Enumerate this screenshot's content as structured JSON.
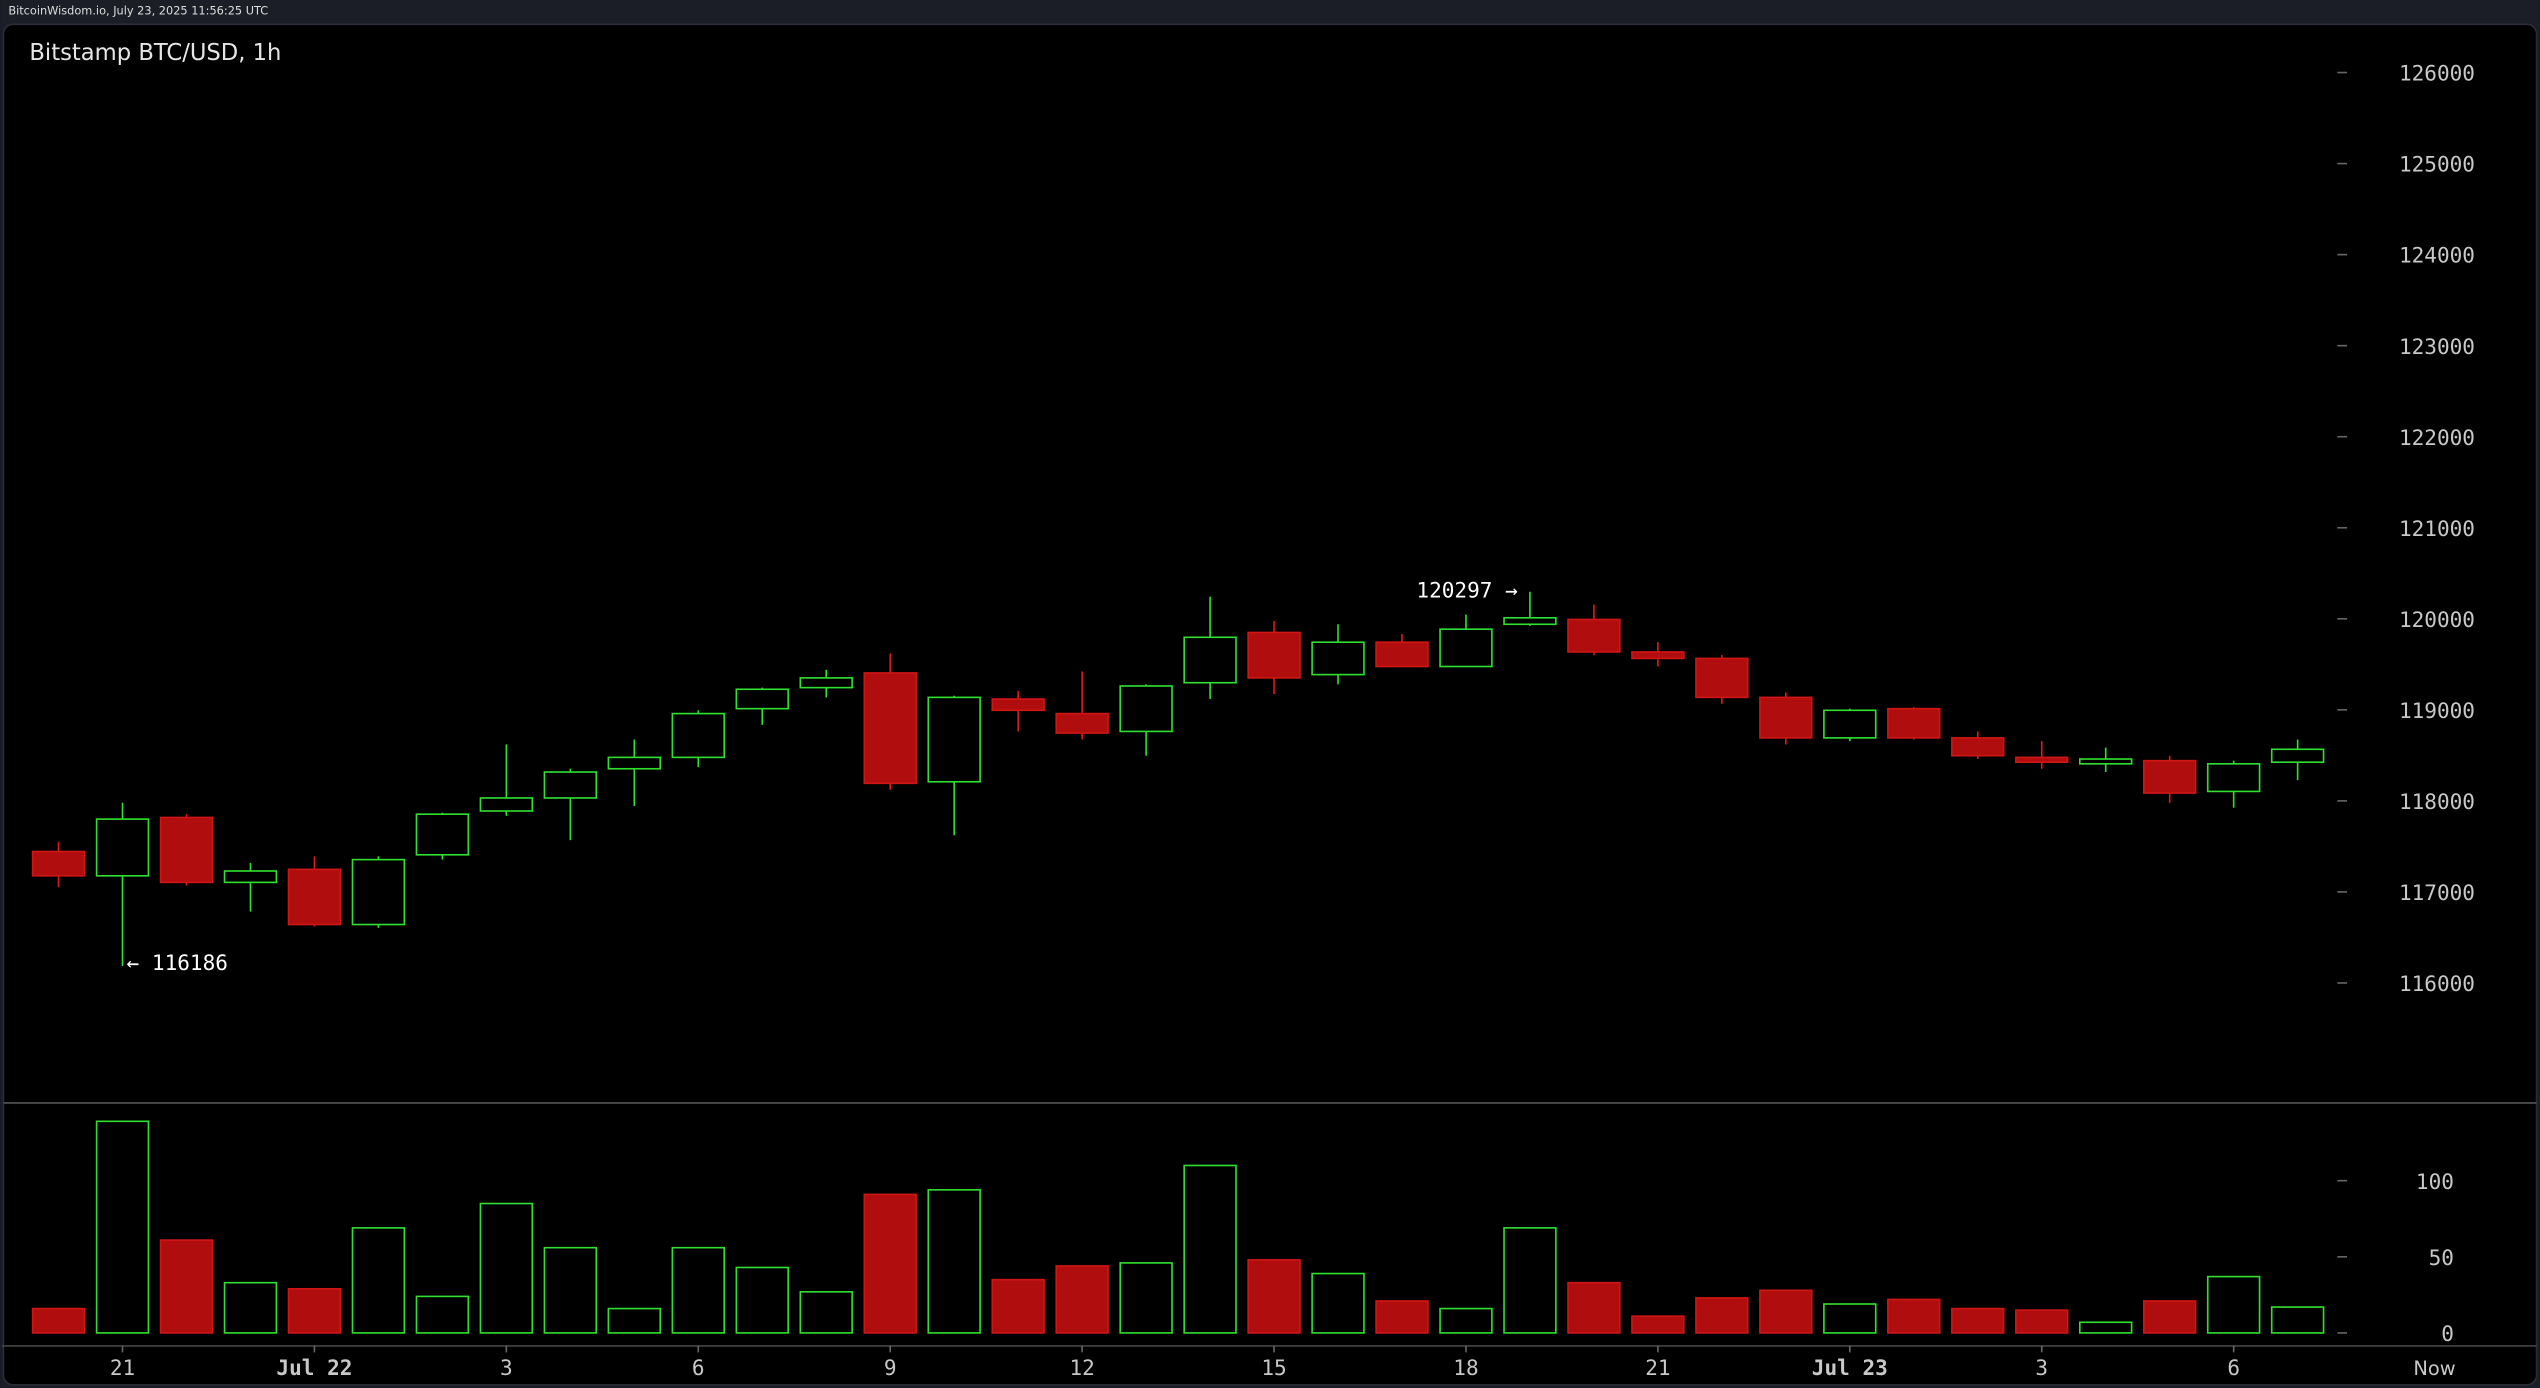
{
  "page": {
    "header": "BitcoinWisdom.io, July 23, 2025 11:56:25 UTC",
    "now_label": "Now",
    "annotations": [
      "120297 →",
      "← 116186"
    ]
  },
  "chart_data": {
    "type": "candlestick",
    "title": "Bitstamp BTC/USD, 1h",
    "categories": [
      null,
      "21",
      null,
      null,
      "Jul 22",
      null,
      null,
      "3",
      null,
      null,
      "6",
      null,
      null,
      "9",
      null,
      null,
      "12",
      null,
      null,
      "15",
      null,
      null,
      "18",
      null,
      null,
      "21",
      null,
      null,
      "Jul 23",
      null,
      null,
      "3",
      null,
      null,
      "6",
      null
    ],
    "open": [
      117444,
      117177,
      117818,
      117105,
      117248,
      116642,
      117408,
      117889,
      118032,
      118353,
      118478,
      119013,
      119244,
      119405,
      118210,
      119119,
      118959,
      118763,
      119298,
      119850,
      119387,
      119743,
      119476,
      119940,
      119993,
      119636,
      119565,
      119137,
      118692,
      119013,
      118692,
      118478,
      118407,
      118442,
      118104,
      118425
    ],
    "high": [
      117551,
      117979,
      117854,
      117319,
      117391,
      117391,
      117870,
      118620,
      118353,
      118674,
      118995,
      119244,
      119440,
      119619,
      119155,
      119209,
      119422,
      119280,
      120243,
      119975,
      119940,
      119832,
      120047,
      120297,
      120154,
      119743,
      119601,
      119191,
      119013,
      119030,
      118763,
      118656,
      118585,
      118496,
      118442,
      118674
    ],
    "low": [
      117052,
      116186,
      117070,
      116784,
      116620,
      116606,
      117355,
      117836,
      117569,
      117943,
      118371,
      118834,
      119137,
      118121,
      117622,
      118763,
      118674,
      118496,
      119120,
      119173,
      119280,
      119476,
      119476,
      119922,
      119601,
      119476,
      119066,
      118620,
      118656,
      118674,
      118460,
      118353,
      118318,
      117979,
      117925,
      118228
    ],
    "close": [
      117177,
      117800,
      117105,
      117230,
      116642,
      117355,
      117854,
      118032,
      118317,
      118478,
      118959,
      119226,
      119351,
      118193,
      119137,
      118995,
      118745,
      119262,
      119797,
      119351,
      119743,
      119476,
      119886,
      120011,
      119636,
      119565,
      119137,
      118692,
      118995,
      118692,
      118496,
      118425,
      118460,
      118086,
      118407,
      118567
    ],
    "volume": [
      16,
      139,
      61,
      33,
      29,
      69,
      24,
      85,
      56,
      16,
      56,
      43,
      27,
      91,
      94,
      35,
      44,
      46,
      110,
      48,
      39,
      21,
      16,
      69,
      33,
      11,
      23,
      28,
      19,
      22,
      16,
      15,
      7,
      21,
      37,
      17
    ],
    "up_color": "#2fe02f",
    "down_color": "#b00e0e",
    "ylim": [
      114700,
      126530
    ],
    "yticks": [
      116000,
      117000,
      118000,
      119000,
      120000,
      121000,
      122000,
      123000,
      124000,
      125000,
      126000
    ],
    "volume_ylim": [
      0,
      150
    ],
    "volume_yticks": [
      0,
      50,
      100
    ]
  }
}
